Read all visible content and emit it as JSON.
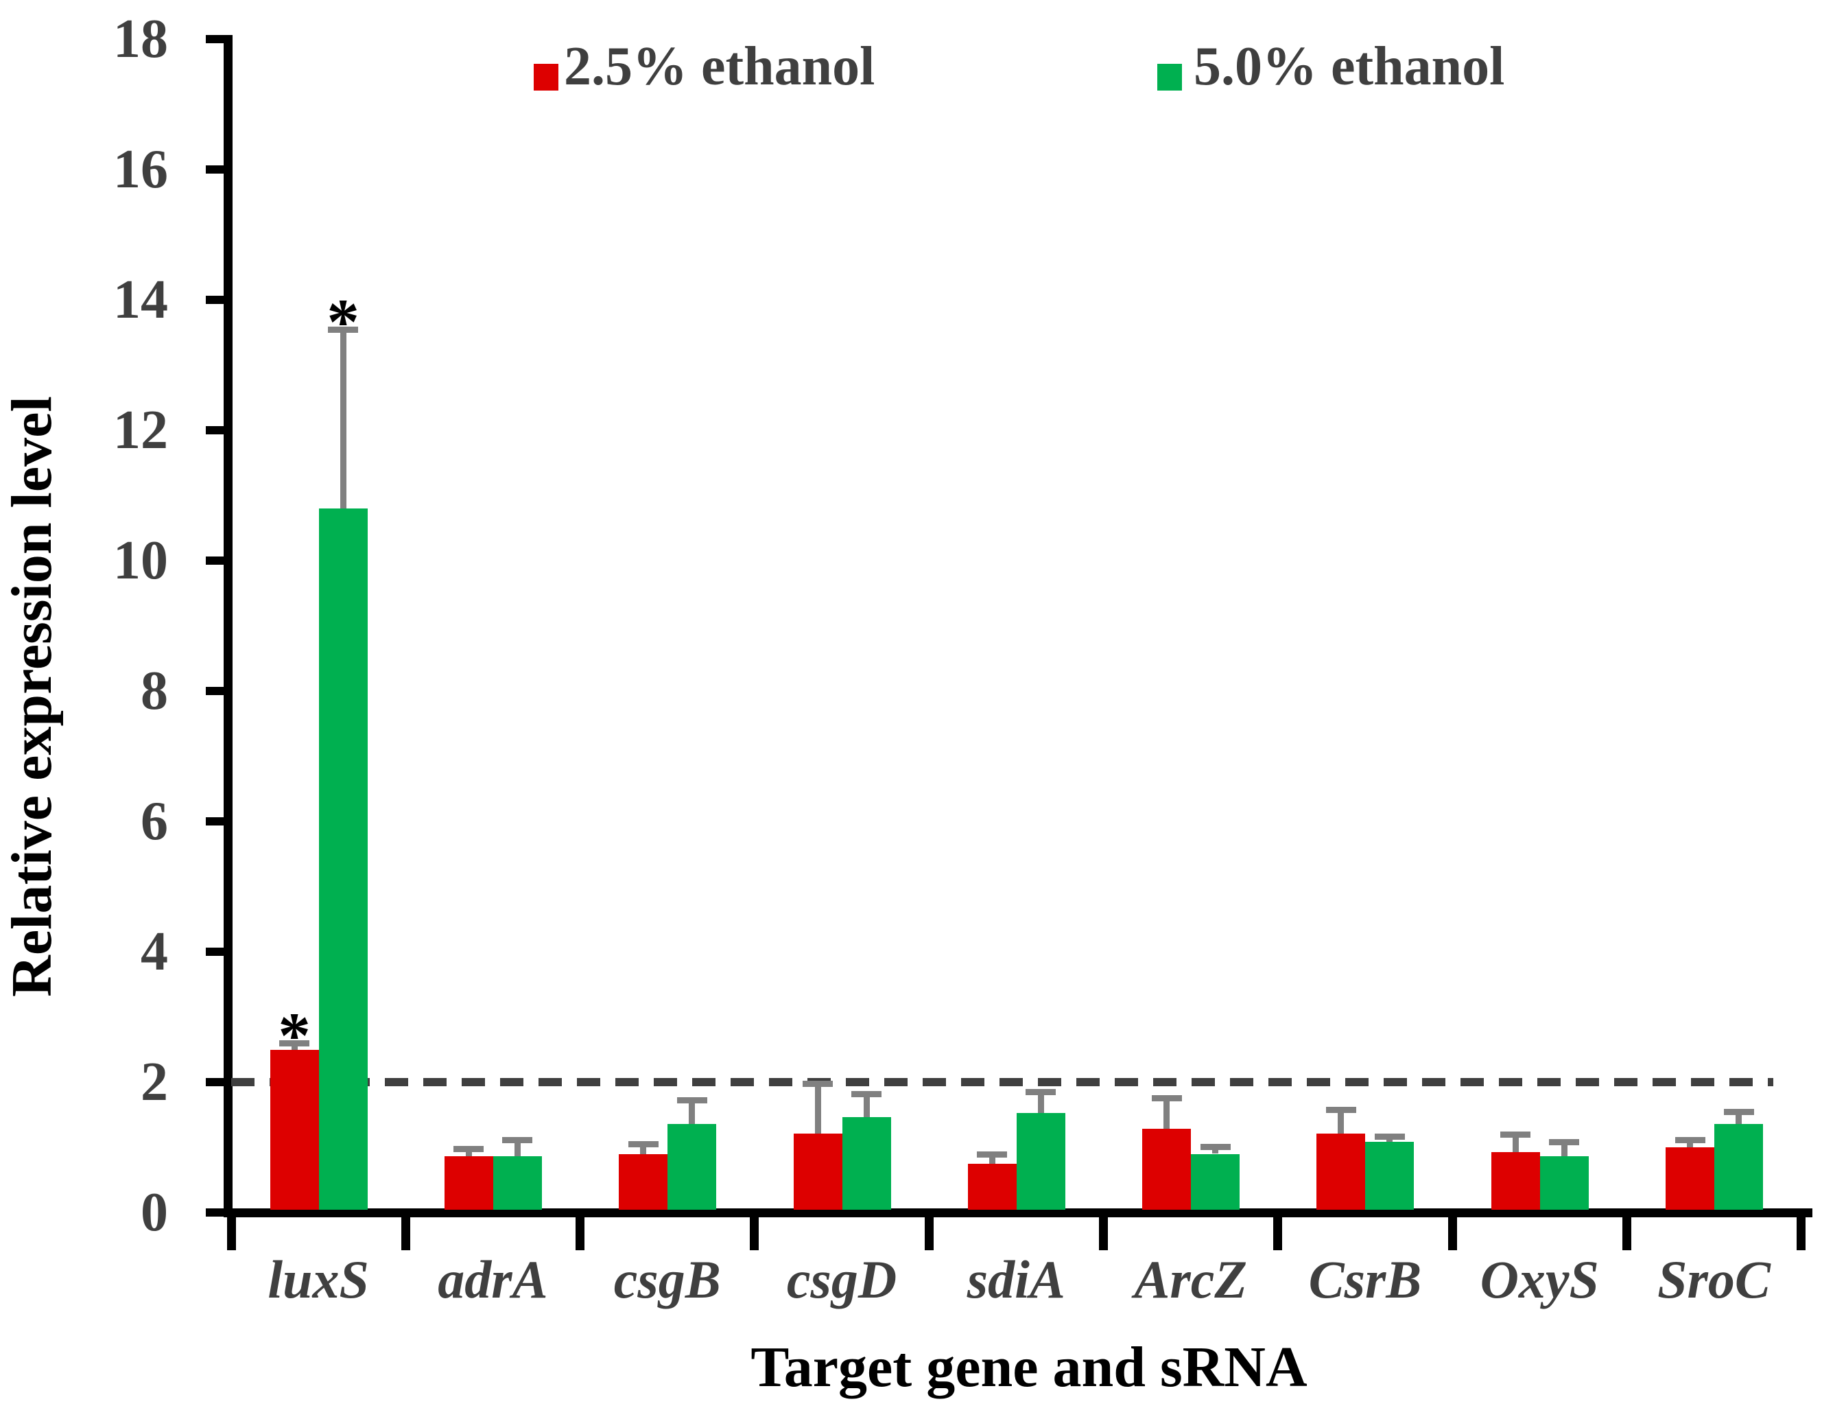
{
  "colors": {
    "background": "#FFFFFF",
    "axis": "#000000",
    "tick_label": "#3F3F3F",
    "category_label": "#3F3F3F",
    "legend_text": "#3F3F3F",
    "error_bar": "#808080",
    "reference_line": "#3F3F3F",
    "significance_mark": "#000000"
  },
  "chart_data": {
    "type": "bar",
    "title": "",
    "xlabel": "Target gene and sRNA",
    "ylabel": "Relative expression level",
    "ylim": [
      0,
      18
    ],
    "yticks": [
      0,
      2,
      4,
      6,
      8,
      10,
      12,
      14,
      16,
      18
    ],
    "grid": false,
    "legend_position": "top",
    "reference_line_y": 2,
    "reference_line_style": "dashed",
    "categories": [
      "luxS",
      "adrA",
      "csgB",
      "csgD",
      "sdiA",
      "ArcZ",
      "CsrB",
      "OxyS",
      "SroC"
    ],
    "series": [
      {
        "name": "2.5% ethanol",
        "color": "#DD0000",
        "values": [
          2.5,
          0.86,
          0.9,
          1.21,
          0.75,
          1.28,
          1.21,
          0.93,
          1.0
        ],
        "errors_plus": [
          0.1,
          0.12,
          0.15,
          0.77,
          0.14,
          0.48,
          0.37,
          0.27,
          0.12
        ],
        "significance": [
          "*",
          "",
          "",
          "",
          "",
          "",
          "",
          "",
          ""
        ]
      },
      {
        "name": "5.0% ethanol",
        "color": "#00B050",
        "values": [
          10.8,
          0.86,
          1.36,
          1.46,
          1.53,
          0.9,
          1.08,
          0.86,
          1.36
        ],
        "errors_plus": [
          2.75,
          0.26,
          0.37,
          0.36,
          0.32,
          0.11,
          0.09,
          0.22,
          0.19
        ],
        "significance": [
          "*",
          "",
          "",
          "",
          "",
          "",
          "",
          "",
          ""
        ]
      }
    ]
  }
}
